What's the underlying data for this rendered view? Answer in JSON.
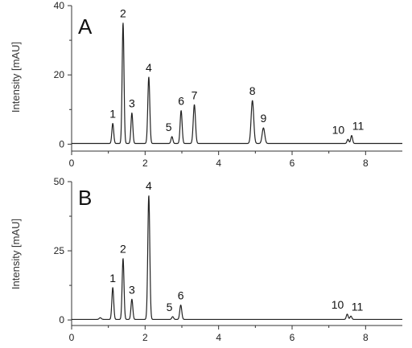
{
  "chart_data": [
    {
      "type": "line",
      "panel_label": "A",
      "ylabel": "Intensity [mAU]",
      "xlim": [
        0,
        9
      ],
      "ylim": [
        -2,
        40
      ],
      "xticks": [
        0,
        2,
        4,
        6,
        8
      ],
      "yticks": [
        0,
        20,
        40
      ],
      "baseline": 0.2,
      "peaks": [
        {
          "label": "1",
          "x": 1.12,
          "height": 5.8,
          "width": 0.025
        },
        {
          "label": "2",
          "x": 1.4,
          "height": 34.8,
          "width": 0.025
        },
        {
          "label": "3",
          "x": 1.64,
          "height": 8.8,
          "width": 0.025
        },
        {
          "label": "4",
          "x": 2.1,
          "height": 19.2,
          "width": 0.027
        },
        {
          "label": "5",
          "x": 2.73,
          "height": 2.0,
          "width": 0.025
        },
        {
          "label": "6",
          "x": 2.98,
          "height": 9.5,
          "width": 0.027
        },
        {
          "label": "7",
          "x": 3.34,
          "height": 11.2,
          "width": 0.03
        },
        {
          "label": "8",
          "x": 4.92,
          "height": 12.4,
          "width": 0.035
        },
        {
          "label": "9",
          "x": 5.22,
          "height": 4.5,
          "width": 0.035
        },
        {
          "label": "10",
          "x": 7.52,
          "height": 1.2,
          "width": 0.025
        },
        {
          "label": "11",
          "x": 7.62,
          "height": 2.3,
          "width": 0.025
        }
      ]
    },
    {
      "type": "line",
      "panel_label": "B",
      "ylabel": "Intensity [mAU]",
      "xlim": [
        0,
        9
      ],
      "ylim": [
        -2,
        50
      ],
      "xticks": [
        0,
        2,
        4,
        6,
        8
      ],
      "yticks": [
        0,
        25,
        50
      ],
      "baseline": 0.2,
      "peaks": [
        {
          "label": "",
          "x": 0.78,
          "height": 0.6,
          "width": 0.03
        },
        {
          "label": "1",
          "x": 1.12,
          "height": 11.5,
          "width": 0.025
        },
        {
          "label": "2",
          "x": 1.4,
          "height": 22.0,
          "width": 0.025
        },
        {
          "label": "3",
          "x": 1.64,
          "height": 7.3,
          "width": 0.025
        },
        {
          "label": "4",
          "x": 2.1,
          "height": 44.8,
          "width": 0.027
        },
        {
          "label": "5",
          "x": 2.75,
          "height": 1.0,
          "width": 0.025
        },
        {
          "label": "6",
          "x": 2.97,
          "height": 5.2,
          "width": 0.027
        },
        {
          "label": "10",
          "x": 7.5,
          "height": 1.9,
          "width": 0.025
        },
        {
          "label": "11",
          "x": 7.6,
          "height": 1.2,
          "width": 0.025
        }
      ]
    }
  ]
}
